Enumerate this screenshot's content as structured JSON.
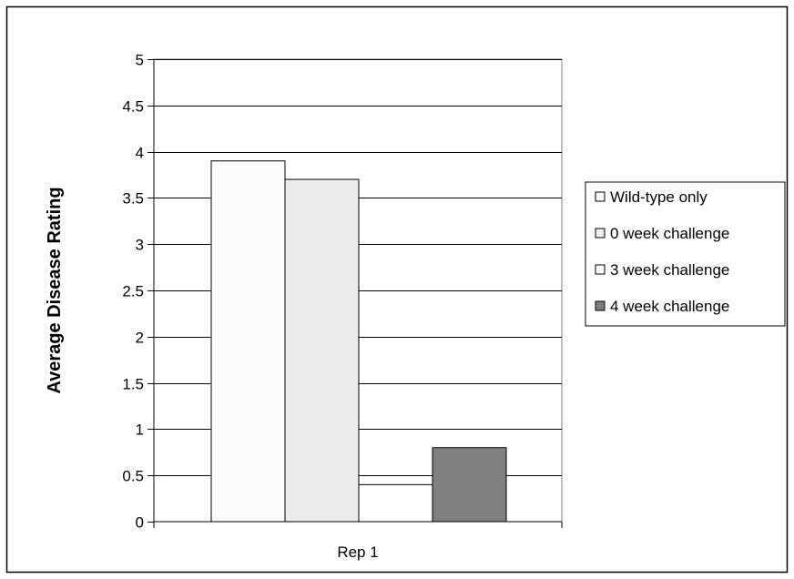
{
  "chart_data": {
    "type": "bar",
    "title": "",
    "xlabel": "",
    "ylabel": "Average Disease Rating",
    "ylim": [
      0,
      5
    ],
    "ytick_step": 0.5,
    "yticks": [
      "0",
      "0.5",
      "1",
      "1.5",
      "2",
      "2.5",
      "3",
      "3.5",
      "4",
      "4.5",
      "5"
    ],
    "categories": [
      "Rep 1"
    ],
    "grid": true,
    "legend_position": "right",
    "series": [
      {
        "name": "Wild-type only",
        "values": [
          3.9
        ],
        "color": "#fbfbfb"
      },
      {
        "name": "0 week challenge",
        "values": [
          3.7
        ],
        "color": "#ececec"
      },
      {
        "name": "3 week challenge",
        "values": [
          0.4
        ],
        "color": "#ffffff"
      },
      {
        "name": "4 week challenge",
        "values": [
          0.8
        ],
        "color": "#808080"
      }
    ]
  }
}
